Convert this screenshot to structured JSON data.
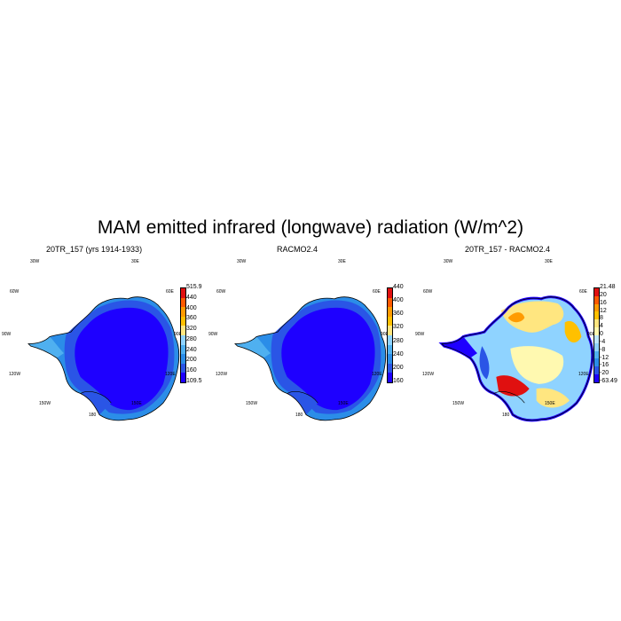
{
  "title": "MAM emitted infrared (longwave) radiation (W/m^2)",
  "lon_labels": {
    "w30": "30W",
    "e30": "30E",
    "e60": "60E",
    "w60": "60W",
    "e90": "90E",
    "w90": "90W",
    "w120": "120W",
    "e120": "120E",
    "w150": "150W",
    "e150": "150E",
    "s180": "180"
  },
  "panels": [
    {
      "title": "20TR_157 (yrs 1914-1933)",
      "colorbar": {
        "colors": [
          "#1e00ff",
          "#2a55e6",
          "#2b8de8",
          "#4fb0f0",
          "#8fd3ff",
          "#ffe680",
          "#ffc000",
          "#ff9b00",
          "#ff5a00",
          "#e01010"
        ],
        "labels": [
          "515.9",
          "440",
          "400",
          "360",
          "320",
          "280",
          "240",
          "200",
          "160",
          "109.5"
        ]
      }
    },
    {
      "title": "RACMO2.4",
      "colorbar": {
        "colors": [
          "#1e00ff",
          "#2a55e6",
          "#2b8de8",
          "#4fb0f0",
          "#8fd3ff",
          "#ffe680",
          "#ffc000",
          "#ff9b00",
          "#ff5a00",
          "#e01010"
        ],
        "labels": [
          "440",
          "400",
          "360",
          "320",
          "280",
          "240",
          "200",
          "160"
        ]
      }
    },
    {
      "title": "20TR_157 - RACMO2.4",
      "colorbar": {
        "colors": [
          "#1e00ff",
          "#2a55e6",
          "#2b8de8",
          "#4fb0f0",
          "#8fd3ff",
          "#bfe8ff",
          "#fff9b0",
          "#ffe680",
          "#ffc000",
          "#ff9b00",
          "#ff5a00",
          "#e01010"
        ],
        "labels": [
          "21.48",
          "20",
          "16",
          "12",
          "8",
          "4",
          "0",
          "-4",
          "-8",
          "-12",
          "-16",
          "-20",
          "-63.49"
        ]
      }
    }
  ]
}
